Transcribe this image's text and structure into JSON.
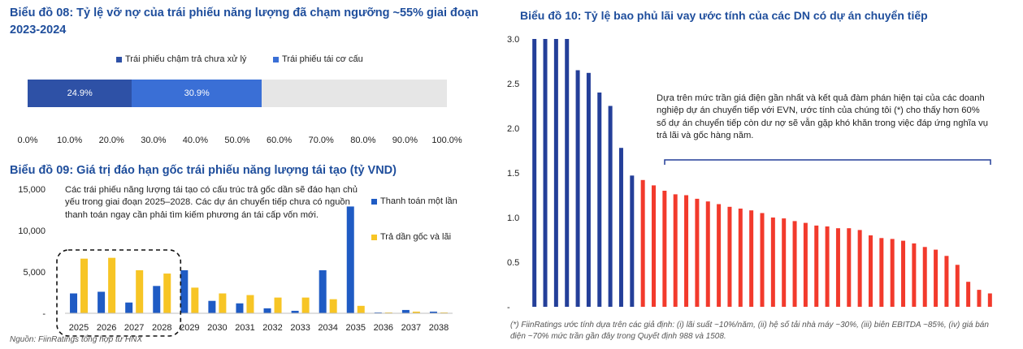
{
  "chart08": {
    "title": "Biểu đồ 08: Tỷ lệ vỡ nợ của trái phiếu năng lượng đã chạm ngưỡng ~55% giai đoạn 2023-2024",
    "legend": [
      "Trái phiếu chậm trả chưa xử lý",
      "Trái phiếu tái cơ cấu"
    ]
  },
  "chart09": {
    "title": "Biểu đồ 09: Giá trị đáo hạn gốc trái phiếu năng lượng tái tạo (tỷ VND)",
    "note": "Các trái phiếu năng lượng tái tạo có cấu trúc trả gốc dần sẽ đáo hạn chủ yếu trong giai đoạn 2025–2028. Các dự án chuyển tiếp chưa có nguồn thanh toán ngay cần phải tìm kiếm phương án tái cấp vốn mới.",
    "legend": [
      "Thanh toán một lần",
      "Trả dần gốc và lãi"
    ],
    "source": "Nguồn: FiinRatings tổng hợp từ HNX"
  },
  "chart10": {
    "title": "Biểu đồ 10: Tỷ lệ bao phủ lãi vay ước tính của các DN có dự án chuyển tiếp",
    "note": "Dựa trên mức trần giá điện gần nhất và kết quả đàm phán hiện tại của các doanh nghiệp dự án chuyển tiếp với EVN, ước tính của chúng tôi (*) cho thấy hơn 60% số dự án chuyển tiếp còn dư nợ sẽ vẫn gặp khó khăn trong việc đáp ứng nghĩa vụ trả lãi và gốc hàng năm.",
    "footnote": "(*) FiinRatings ước tính dựa trên các giả định: (i) lãi suất ~10%/năm, (ii) hệ số tải nhà máy ~30%, (iii) biên EBITDA ~85%, (iv) giá bán điện ~70% mức trần gần đây trong Quyết định 988 và 1508."
  },
  "colors": {
    "dark_blue": "#2e51a6",
    "mid_blue": "#3a6fd6",
    "bar_blue": "#1f5bc4",
    "gold": "#f7c525",
    "grey": "#e6e6e6",
    "red": "#f23a2c",
    "navy": "#243f99"
  },
  "chart_data": [
    {
      "type": "bar",
      "orientation": "horizontal-stacked",
      "series": [
        {
          "name": "Trái phiếu chậm trả chưa xử lý",
          "values": [
            24.9
          ]
        },
        {
          "name": "Trái phiếu tái cơ cấu",
          "values": [
            30.9
          ]
        }
      ],
      "data_labels": [
        "24.9%",
        "30.9%"
      ],
      "x_ticks": [
        "0.0%",
        "10.0%",
        "20.0%",
        "30.0%",
        "40.0%",
        "50.0%",
        "60.0%",
        "70.0%",
        "80.0%",
        "90.0%",
        "100.0%"
      ],
      "xlim": [
        0,
        100
      ]
    },
    {
      "type": "bar",
      "categories": [
        "2025",
        "2026",
        "2027",
        "2028",
        "2029",
        "2030",
        "2031",
        "2032",
        "2033",
        "2034",
        "2035",
        "2036",
        "2037",
        "2038"
      ],
      "series": [
        {
          "name": "Thanh toán một lần",
          "values": [
            2400,
            2600,
            1300,
            3300,
            5200,
            1500,
            1200,
            600,
            300,
            5200,
            12900,
            100,
            400,
            200
          ]
        },
        {
          "name": "Trả dần gốc và lãi",
          "values": [
            6600,
            6700,
            5200,
            4800,
            3100,
            2400,
            2200,
            1900,
            1900,
            1700,
            900,
            100,
            200,
            100
          ]
        }
      ],
      "y_ticks": [
        "-",
        "5,000",
        "10,000",
        "15,000"
      ],
      "ylim": [
        0,
        15000
      ],
      "highlight_categories": [
        "2025",
        "2026",
        "2027",
        "2028"
      ]
    },
    {
      "type": "bar",
      "values": [
        3.0,
        3.0,
        3.0,
        3.0,
        2.65,
        2.62,
        2.4,
        2.25,
        1.78,
        1.47,
        1.42,
        1.36,
        1.3,
        1.26,
        1.25,
        1.21,
        1.18,
        1.15,
        1.12,
        1.1,
        1.08,
        1.05,
        1.0,
        0.99,
        0.96,
        0.94,
        0.91,
        0.9,
        0.88,
        0.88,
        0.86,
        0.8,
        0.77,
        0.76,
        0.74,
        0.71,
        0.67,
        0.64,
        0.57,
        0.47,
        0.28,
        0.19,
        0.15
      ],
      "red_from_index": 10,
      "y_ticks": [
        "-",
        "0.5",
        "1.0",
        "1.5",
        "2.0",
        "2.5",
        "3.0"
      ],
      "ylim": [
        0,
        3
      ]
    }
  ]
}
